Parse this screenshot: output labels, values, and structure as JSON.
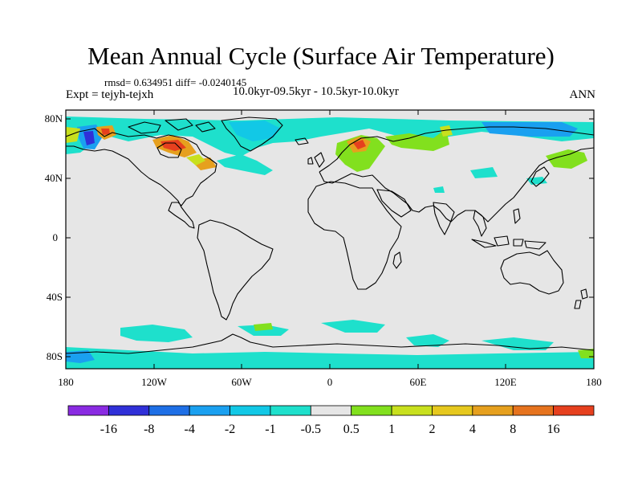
{
  "title": "Mean Annual Cycle (Surface Air Temperature)",
  "stats_line": "rmsd= 0.634951 diff= -0.0240145",
  "experiment_label": "Expt = tejyh-tejxh",
  "period_label": "10.0kyr-09.5kyr - 10.5kyr-10.0kyr",
  "season_label": "ANN",
  "map": {
    "background_color": "#e6e6e6",
    "lat_ticks": [
      "80N",
      "40N",
      "0",
      "40S",
      "80S"
    ],
    "lon_ticks": [
      "180",
      "120W",
      "60W",
      "0",
      "60E",
      "120E",
      "180"
    ]
  },
  "colorbar": {
    "colors": [
      "#8a2be2",
      "#3030d8",
      "#1e6fe6",
      "#1aa0f0",
      "#12c8e6",
      "#1ee0cc",
      "#e6e6e6",
      "#82e01e",
      "#c8e01e",
      "#e6c81e",
      "#e6a01e",
      "#e6731e",
      "#e6401e"
    ],
    "labels": [
      "-16",
      "-8",
      "-4",
      "-2",
      "-1",
      "-0.5",
      "0.5",
      "1",
      "2",
      "4",
      "8",
      "16"
    ]
  },
  "anomaly_colors": {
    "cyan": "#1ee0cc",
    "light_blue": "#12c8e6",
    "blue": "#1aa0f0",
    "dark_blue": "#3030d8",
    "green": "#82e01e",
    "yellow": "#c8e01e",
    "orange": "#e6a01e",
    "red": "#e6401e"
  }
}
